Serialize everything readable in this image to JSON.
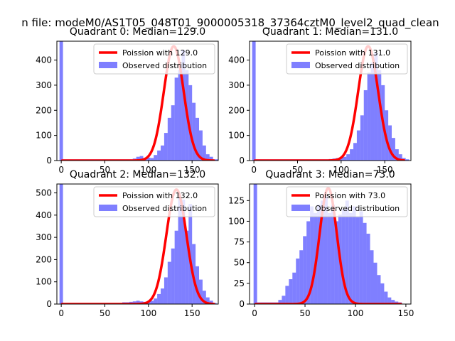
{
  "figure": {
    "suptitle": "n file: modeM0/AS1T05_048T01_9000005318_37364cztM0_level2_quad_clean"
  },
  "colors": {
    "observed": "#0000ff",
    "poisson": "#ff0000",
    "axis": "#000000"
  },
  "chart_data": [
    {
      "type": "histogram+line",
      "title": "Quadrant 0: Median=129.0",
      "xlim": [
        -5,
        180
      ],
      "ylim": [
        0,
        475
      ],
      "xticks": [
        0,
        50,
        100,
        150
      ],
      "yticks": [
        0,
        100,
        200,
        300,
        400
      ],
      "legend_loc": "upper-right",
      "legend": [
        "Poission with 129.0",
        "Observed distribution"
      ],
      "line": {
        "mean": 129.0,
        "peak": 455,
        "x0": 1,
        "x1": 175
      },
      "hist": {
        "x0": -2,
        "bin_width": 4,
        "values": [
          475,
          5,
          5,
          5,
          5,
          5,
          5,
          5,
          5,
          5,
          5,
          5,
          5,
          5,
          5,
          5,
          5,
          5,
          5,
          5,
          5,
          8,
          15,
          18,
          10,
          12,
          10,
          22,
          40,
          60,
          110,
          170,
          220,
          330,
          360,
          440,
          360,
          300,
          230,
          170,
          120,
          60,
          25,
          15,
          5,
          5
        ]
      }
    },
    {
      "type": "histogram+line",
      "title": "Quadrant 1: Median=131.0",
      "xlim": [
        -5,
        180
      ],
      "ylim": [
        0,
        475
      ],
      "xticks": [
        0,
        50,
        100,
        150
      ],
      "yticks": [
        0,
        100,
        200,
        300,
        400
      ],
      "legend_loc": "upper-right",
      "legend": [
        "Poission with 131.0",
        "Observed distribution"
      ],
      "line": {
        "mean": 131.0,
        "peak": 455,
        "x0": 1,
        "x1": 172
      },
      "hist": {
        "x0": -2,
        "bin_width": 4,
        "values": [
          475,
          5,
          5,
          5,
          5,
          5,
          5,
          5,
          5,
          5,
          5,
          5,
          5,
          5,
          5,
          5,
          5,
          5,
          5,
          5,
          5,
          5,
          6,
          8,
          10,
          12,
          15,
          25,
          45,
          70,
          120,
          180,
          280,
          350,
          390,
          430,
          360,
          300,
          200,
          140,
          90,
          45,
          25,
          10,
          5
        ]
      }
    },
    {
      "type": "histogram+line",
      "title": "Quadrant 2: Median=132.0",
      "xlim": [
        -5,
        180
      ],
      "ylim": [
        0,
        540
      ],
      "xticks": [
        0,
        50,
        100,
        150
      ],
      "yticks": [
        0,
        100,
        200,
        300,
        400,
        500
      ],
      "legend_loc": "upper-right",
      "legend": [
        "Poission with 132.0",
        "Observed distribution"
      ],
      "line": {
        "mean": 132.0,
        "peak": 515,
        "x0": 1,
        "x1": 175
      },
      "hist": {
        "x0": -2,
        "bin_width": 4,
        "values": [
          540,
          5,
          5,
          5,
          5,
          5,
          5,
          5,
          5,
          5,
          5,
          5,
          5,
          5,
          5,
          5,
          5,
          5,
          8,
          8,
          10,
          12,
          15,
          12,
          10,
          10,
          15,
          25,
          45,
          70,
          120,
          190,
          250,
          330,
          480,
          470,
          330,
          450,
          270,
          170,
          110,
          60,
          30,
          15,
          5
        ]
      }
    },
    {
      "type": "histogram+line",
      "title": "Quadrant 3: Median=73.0",
      "xlim": [
        -5,
        155
      ],
      "ylim": [
        0,
        145
      ],
      "xticks": [
        0,
        50,
        100,
        150
      ],
      "yticks": [
        0,
        25,
        50,
        75,
        100,
        125
      ],
      "legend_loc": "upper-right",
      "legend": [
        "Poission with 73.0",
        "Observed distribution"
      ],
      "line": {
        "mean": 73.0,
        "peak": 140,
        "x0": 1,
        "x1": 145
      },
      "hist": {
        "x0": -1,
        "bin_width": 3.5,
        "values": [
          145,
          2,
          2,
          2,
          2,
          2,
          2,
          5,
          10,
          22,
          30,
          38,
          55,
          65,
          82,
          100,
          118,
          110,
          120,
          125,
          130,
          110,
          120,
          100,
          108,
          115,
          125,
          110,
          118,
          105,
          112,
          98,
          85,
          65,
          50,
          35,
          25,
          15,
          8,
          5,
          3,
          2
        ]
      }
    }
  ]
}
